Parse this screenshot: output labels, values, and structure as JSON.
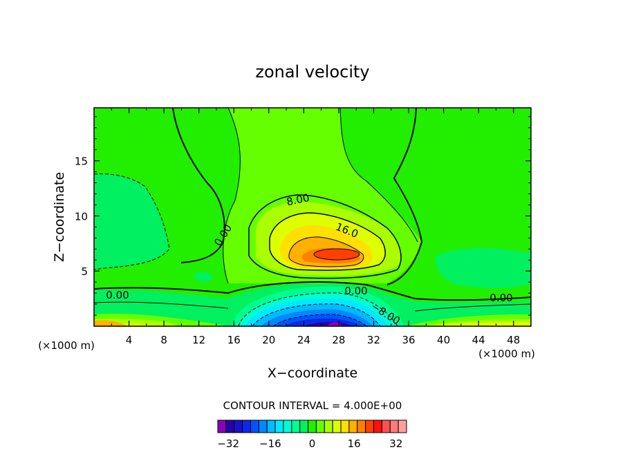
{
  "chart_data": {
    "type": "heatmap",
    "title": "zonal velocity",
    "xlabel": "X−coordinate",
    "ylabel": "Z−coordinate",
    "x_units": "(×1000 m)",
    "x_range": [
      0,
      50
    ],
    "y_range": [
      0,
      19.8
    ],
    "x_ticks": [
      "4",
      "8",
      "12",
      "16",
      "20",
      "24",
      "28",
      "32",
      "36",
      "40",
      "44",
      "48"
    ],
    "y_ticks": [
      "5",
      "10",
      "15"
    ],
    "contour_labels": [
      "8.00",
      "16.0",
      "0.00",
      "0.00",
      "0.00",
      "−8.00",
      "0.00"
    ],
    "contour_interval_text": "CONTOUR INTERVAL = 4.000E+00",
    "colorbar": {
      "min": -36,
      "max": 36,
      "step": 4,
      "tick_labels": [
        "−32",
        "−16",
        "0",
        "16",
        "32"
      ],
      "colors": [
        "#8800bb",
        "#2800aa",
        "#1a10cc",
        "#0a2ae8",
        "#0055ff",
        "#0088ff",
        "#00bbff",
        "#00e8ff",
        "#00ffd0",
        "#00ff90",
        "#00f060",
        "#22ee00",
        "#66ff00",
        "#aaff00",
        "#ddff00",
        "#ffe000",
        "#ffb000",
        "#ff8000",
        "#ff4000",
        "#ff1010",
        "#ff5050",
        "#ff7a7a",
        "#ffa0a0"
      ]
    },
    "grid": false,
    "legend": "colorbar-bottom"
  }
}
